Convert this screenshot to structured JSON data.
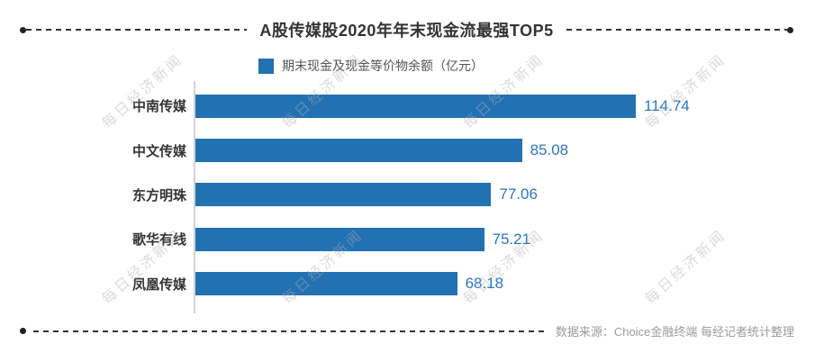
{
  "title": "A股传媒股2020年年末现金流最强TOP5",
  "legend": {
    "label": "期末现金及现金等价物余额（亿元）"
  },
  "chart_data": {
    "type": "bar",
    "orientation": "horizontal",
    "title": "A股传媒股2020年年末现金流最强TOP5",
    "series_name": "期末现金及现金等价物余额（亿元）",
    "categories": [
      "中南传媒",
      "中文传媒",
      "东方明珠",
      "歌华有线",
      "凤凰传媒"
    ],
    "values": [
      114.74,
      85.08,
      77.06,
      75.21,
      68.18
    ],
    "unit": "亿元",
    "xlim": [
      0,
      114.74
    ],
    "grid": false,
    "legend_position": "top",
    "bar_color": "#2171b3",
    "value_label_color": "#2b77bd"
  },
  "footer": {
    "source": "数据来源：Choice金融终端 每经记者统计整理"
  },
  "watermark": {
    "text": "每日经济新闻"
  }
}
